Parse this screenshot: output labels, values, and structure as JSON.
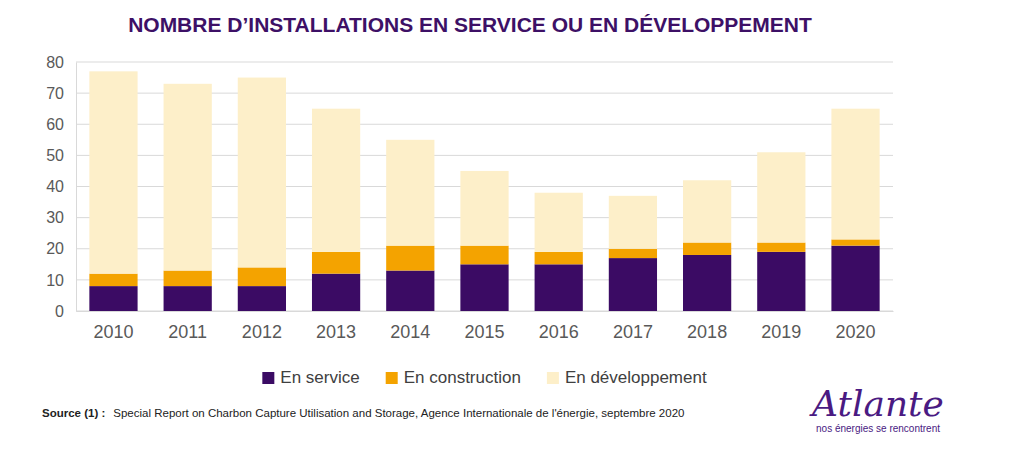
{
  "chart_data": {
    "type": "bar",
    "stacked": true,
    "title": "NOMBRE D’INSTALLATIONS EN SERVICE OU EN DÉVELOPPEMENT",
    "categories": [
      "2010",
      "2011",
      "2012",
      "2013",
      "2014",
      "2015",
      "2016",
      "2017",
      "2018",
      "2019",
      "2020"
    ],
    "series": [
      {
        "name": "En service",
        "color": "#3b0b64",
        "values": [
          8,
          8,
          8,
          12,
          13,
          15,
          15,
          17,
          18,
          19,
          21
        ]
      },
      {
        "name": "En construction",
        "color": "#f4a300",
        "values": [
          4,
          5,
          6,
          7,
          8,
          6,
          4,
          3,
          4,
          3,
          2
        ]
      },
      {
        "name": "En développement",
        "color": "#fdefc9",
        "values": [
          65,
          60,
          61,
          46,
          34,
          24,
          19,
          17,
          20,
          29,
          42
        ]
      }
    ],
    "ylim": [
      0,
      80
    ],
    "yticks": [
      0,
      10,
      20,
      30,
      40,
      50,
      60,
      70,
      80
    ],
    "grid": true,
    "legend": "bottom",
    "source": {
      "label": "Source (1) :",
      "text": "Special Report on Charbon Capture Utilisation and Storage, Agence Internationale de l'énergie, septembre 2020"
    },
    "logo": {
      "text": "Atlante",
      "tagline": "nos énergies se rencontrent"
    }
  }
}
